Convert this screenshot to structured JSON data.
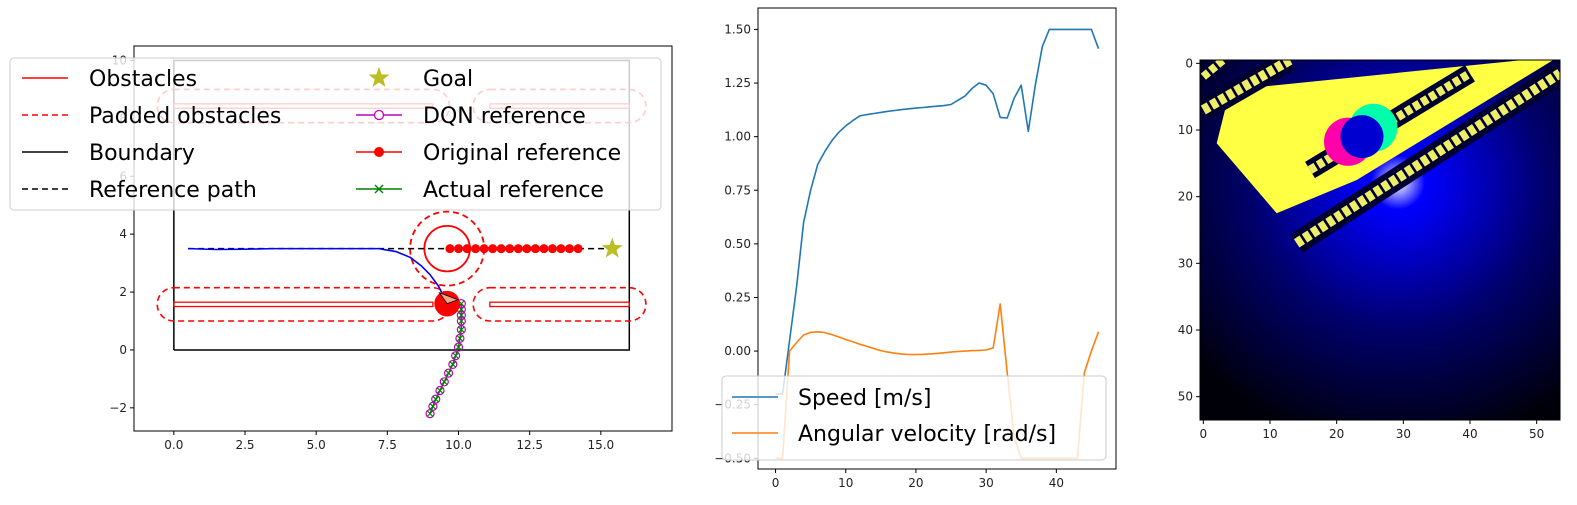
{
  "chart_data": [
    {
      "type": "line",
      "title": "",
      "xlabel": "",
      "ylabel": "",
      "xlim": [
        -1.4,
        17.5
      ],
      "ylim": [
        -2.8,
        10.5
      ],
      "xticks": [
        "0.0",
        "2.5",
        "5.0",
        "7.5",
        "10.0",
        "12.5",
        "15.0"
      ],
      "xtick_values": [
        0,
        2.5,
        5,
        7.5,
        10,
        12.5,
        15
      ],
      "yticks": [
        "−2",
        "0",
        "2",
        "4",
        "6",
        "8",
        "10"
      ],
      "ytick_values": [
        -2,
        0,
        2,
        4,
        6,
        8,
        10
      ],
      "legend_placement": "upper-left",
      "legend": [
        {
          "label": "Obstacles",
          "style": "solid",
          "color": "#ff0000",
          "marker": "none"
        },
        {
          "label": "Padded obstacles",
          "style": "dashed",
          "color": "#ff0000",
          "marker": "none"
        },
        {
          "label": "Boundary",
          "style": "solid",
          "color": "#000000",
          "marker": "none"
        },
        {
          "label": "Reference path",
          "style": "dashed",
          "color": "#000000",
          "marker": "none"
        },
        {
          "label": "Goal",
          "style": "none",
          "color": "#bcbd22",
          "marker": "star"
        },
        {
          "label": "DQN reference",
          "style": "solid",
          "color": "#bf00bf",
          "marker": "open-circle"
        },
        {
          "label": "Original reference",
          "style": "solid",
          "color": "#ff0000",
          "marker": "filled-circle"
        },
        {
          "label": "Actual reference",
          "style": "solid",
          "color": "#008000",
          "marker": "x"
        }
      ],
      "boundary": [
        [
          0,
          0
        ],
        [
          16,
          0
        ],
        [
          16,
          10
        ],
        [
          0,
          10
        ],
        [
          0,
          0
        ]
      ],
      "obstacles_lower": [
        {
          "x": [
            0,
            9.1
          ],
          "y": [
            1.5,
            1.65
          ]
        },
        {
          "x": [
            11.1,
            16
          ],
          "y": [
            1.5,
            1.65
          ]
        }
      ],
      "obstacles_upper": [
        {
          "x": [
            0,
            9.1
          ],
          "y": [
            8.35,
            8.5
          ]
        },
        {
          "x": [
            11.1,
            16
          ],
          "y": [
            8.35,
            8.5
          ]
        }
      ],
      "obstacle_pad": 0.5,
      "circle_obstacle": {
        "center": [
          9.6,
          3.5
        ],
        "radius": 0.8,
        "padded_radius": 1.3
      },
      "reference_path": {
        "x": [
          0.5,
          15.5
        ],
        "y": [
          3.5,
          3.5
        ]
      },
      "goal": [
        15.4,
        3.5
      ],
      "original_reference": {
        "x": [
          9.7,
          10.0,
          10.3,
          10.6,
          10.9,
          11.2,
          11.5,
          11.8,
          12.1,
          12.4,
          12.7,
          13.0,
          13.3,
          13.6,
          13.9,
          14.2
        ],
        "y": [
          3.5,
          3.5,
          3.5,
          3.5,
          3.5,
          3.5,
          3.5,
          3.5,
          3.5,
          3.5,
          3.5,
          3.5,
          3.5,
          3.5,
          3.5,
          3.5
        ]
      },
      "trajectory": {
        "x": [
          0.5,
          1.5,
          2.5,
          3.5,
          4.5,
          5.5,
          6.5,
          7.2,
          7.8,
          8.3,
          8.7,
          9.0,
          9.3,
          9.5
        ],
        "y": [
          3.5,
          3.47,
          3.48,
          3.5,
          3.5,
          3.5,
          3.5,
          3.5,
          3.4,
          3.2,
          2.9,
          2.6,
          2.2,
          1.8
        ]
      },
      "dqn_reference": {
        "x": [
          9.0,
          9.1,
          9.2,
          9.35,
          9.5,
          9.65,
          9.8,
          9.9,
          10.0,
          10.05,
          10.1,
          10.1,
          10.1,
          10.1,
          10.1
        ],
        "y": [
          -2.2,
          -1.95,
          -1.7,
          -1.4,
          -1.1,
          -0.8,
          -0.5,
          -0.2,
          0.1,
          0.4,
          0.7,
          1.0,
          1.2,
          1.4,
          1.6
        ]
      },
      "robot": {
        "center": [
          9.6,
          1.6
        ],
        "radius": 0.45
      }
    },
    {
      "type": "line",
      "title": "",
      "xlabel": "",
      "ylabel": "",
      "xlim": [
        -2.5,
        48.5
      ],
      "ylim": [
        -0.55,
        1.6
      ],
      "xticks": [
        "0",
        "10",
        "20",
        "30",
        "40"
      ],
      "xtick_values": [
        0,
        10,
        20,
        30,
        40
      ],
      "yticks": [
        "−0.50",
        "−0.25",
        "0.00",
        "0.25",
        "0.50",
        "0.75",
        "1.00",
        "1.25",
        "1.50"
      ],
      "ytick_values": [
        -0.5,
        -0.25,
        0,
        0.25,
        0.5,
        0.75,
        1.0,
        1.25,
        1.5
      ],
      "legend_placement": "lower-center",
      "x": [
        0,
        1,
        2,
        3,
        4,
        5,
        6,
        7,
        8,
        9,
        10,
        11,
        12,
        13,
        14,
        15,
        16,
        17,
        18,
        19,
        20,
        21,
        22,
        23,
        24,
        25,
        26,
        27,
        28,
        29,
        30,
        31,
        32,
        33,
        34,
        35,
        36,
        37,
        38,
        39,
        40,
        41,
        42,
        43,
        44,
        45,
        46
      ],
      "series": [
        {
          "name": "Speed [m/s]",
          "color": "#1f77b4",
          "values": [
            -0.2,
            -0.2,
            0.05,
            0.3,
            0.6,
            0.75,
            0.87,
            0.93,
            0.98,
            1.02,
            1.05,
            1.075,
            1.097,
            1.103,
            1.108,
            1.113,
            1.118,
            1.122,
            1.126,
            1.13,
            1.133,
            1.136,
            1.139,
            1.142,
            1.145,
            1.15,
            1.17,
            1.19,
            1.225,
            1.25,
            1.24,
            1.2,
            1.09,
            1.087,
            1.18,
            1.24,
            1.025,
            1.24,
            1.42,
            1.5,
            1.5,
            1.5,
            1.5,
            1.5,
            1.5,
            1.5,
            1.41
          ]
        },
        {
          "name": "Angular velocity [rad/s]",
          "color": "#ff7f0e",
          "values": [
            -0.5,
            -0.5,
            0.0,
            0.04,
            0.075,
            0.087,
            0.09,
            0.086,
            0.077,
            0.066,
            0.054,
            0.043,
            0.032,
            0.022,
            0.012,
            0.002,
            -0.005,
            -0.01,
            -0.014,
            -0.016,
            -0.016,
            -0.015,
            -0.013,
            -0.011,
            -0.008,
            -0.005,
            -0.002,
            0.0,
            0.002,
            0.003,
            0.005,
            0.015,
            0.22,
            -0.1,
            -0.4,
            -0.5,
            -0.5,
            -0.5,
            -0.5,
            -0.5,
            -0.5,
            -0.5,
            -0.5,
            -0.5,
            -0.1,
            0.0,
            0.09
          ]
        }
      ]
    },
    {
      "type": "heatmap",
      "title": "",
      "xlabel": "",
      "ylabel": "",
      "size": [
        54,
        54
      ],
      "xticks": [
        "0",
        "10",
        "20",
        "30",
        "40",
        "50"
      ],
      "xtick_values": [
        0,
        10,
        20,
        30,
        40,
        50
      ],
      "yticks": [
        "0",
        "10",
        "20",
        "30",
        "40",
        "50"
      ],
      "ytick_values": [
        0,
        10,
        20,
        30,
        40,
        50
      ],
      "colors": {
        "background": "#000008",
        "glow": "#0000ff",
        "free_space": "#ffff44",
        "edge": "#eeee66",
        "circle_left": "#ff00aa",
        "circle_right": "#00ffaa",
        "circle_core": "#0000d0"
      },
      "fov_polygon": [
        [
          4,
          4
        ],
        [
          48,
          -0.5
        ],
        [
          52.5,
          -0.5
        ],
        [
          23,
          17.5
        ],
        [
          11,
          22.5
        ],
        [
          2,
          12
        ]
      ],
      "stripes": [
        {
          "from": [
            0,
            7
          ],
          "to": [
            13,
            -0.5
          ],
          "width": 1.5
        },
        {
          "from": [
            0,
            2
          ],
          "to": [
            3,
            -0.5
          ],
          "width": 1.2
        },
        {
          "from": [
            14,
            27
          ],
          "to": [
            53.5,
            1.5
          ],
          "width": 1.5
        },
        {
          "from": [
            16,
            16
          ],
          "to": [
            40,
            1.5
          ],
          "width": 1.3
        }
      ],
      "circle": {
        "center": [
          23.8,
          11.0
        ],
        "radius": 3.8
      }
    }
  ]
}
